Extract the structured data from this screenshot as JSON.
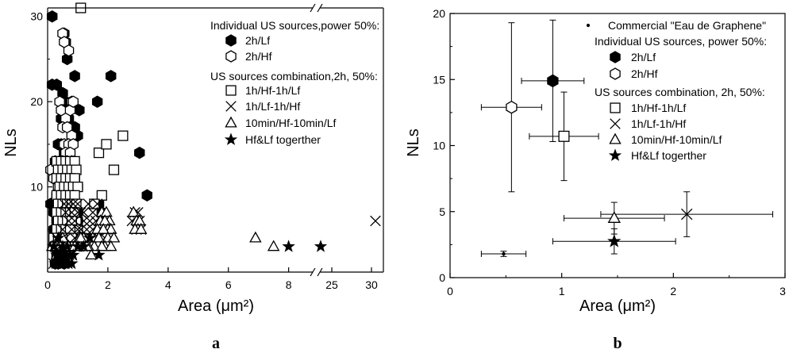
{
  "panels": {
    "a": "a",
    "b": "b"
  },
  "chart_data": [
    {
      "type": "scatter",
      "panel": "a",
      "xlabel": "Area (μm²)",
      "ylabel": "NLs",
      "xlim_left": [
        0,
        8.8
      ],
      "xlim_right": [
        23.5,
        31.5
      ],
      "axis_break_x": {
        "from": 8.8,
        "to": 23.5
      },
      "ylim": [
        0,
        31
      ],
      "x_ticks": [
        {
          "v": 0,
          "label": "0"
        },
        {
          "v": 2,
          "label": "2"
        },
        {
          "v": 4,
          "label": "4"
        },
        {
          "v": 6,
          "label": "6"
        },
        {
          "v": 8,
          "label": "8"
        },
        {
          "v": 25,
          "label": "25"
        },
        {
          "v": 30,
          "label": "30"
        }
      ],
      "y_ticks": [
        {
          "v": 10,
          "label": "10"
        },
        {
          "v": 20,
          "label": "20"
        },
        {
          "v": 30,
          "label": "30"
        }
      ],
      "legend_heading_1": "Individual US sources,power 50%:",
      "legend_heading_2": "US sources combination,2h, 50%:",
      "series": [
        {
          "name": "2h/Lf",
          "marker": "hexagon",
          "fill": "#000000",
          "x": [
            0.15,
            0.55,
            0.6,
            0.65,
            0.9,
            1.05,
            2.1,
            0.15,
            0.3,
            0.5,
            0.45,
            0.6,
            0.7,
            0.9,
            1.0,
            0.35,
            0.45,
            0.55,
            0.6,
            0.7,
            0.25,
            0.4,
            0.5,
            0.6,
            0.8,
            0.9,
            0.5,
            0.6,
            0.7,
            0.8,
            0.9,
            1.0,
            0.3,
            0.4,
            0.5,
            0.6,
            0.7,
            1.7,
            0.1,
            0.2,
            0.3,
            0.5,
            0.6,
            0.8,
            0.9,
            1.8,
            0.2,
            0.4,
            0.5,
            0.7,
            0.9,
            1.0,
            0.3,
            0.4,
            0.6,
            0.8,
            1.0,
            0.2,
            0.4,
            0.5,
            0.7,
            0.3,
            0.5,
            0.8,
            0.2,
            0.4,
            0.6,
            0.3,
            0.5,
            0.25,
            0.35,
            0.55,
            1.65,
            3.05,
            3.3
          ],
          "y": [
            30,
            28,
            27,
            25,
            23,
            19,
            23,
            22,
            22,
            21,
            18,
            20,
            18,
            17,
            16,
            15,
            15,
            14,
            14,
            13,
            13,
            13,
            12,
            12,
            12,
            11,
            11,
            11,
            10,
            10,
            10,
            10,
            9,
            9,
            9,
            9,
            8,
            8,
            8,
            8,
            8,
            8,
            8,
            8,
            8,
            7,
            7,
            7,
            7,
            7,
            7,
            7,
            6,
            6,
            6,
            6,
            6,
            5,
            5,
            5,
            5,
            4,
            4,
            4,
            3,
            3,
            3,
            2,
            2,
            1,
            1,
            1,
            20,
            14,
            9
          ]
        },
        {
          "name": "2h/Hf",
          "marker": "hexagon",
          "fill": "#ffffff",
          "x": [
            0.5,
            0.55,
            0.7,
            0.4,
            0.5,
            0.8,
            0.45,
            0.6,
            0.75,
            0.85,
            0.5,
            0.65,
            0.8,
            0.55,
            0.7,
            0.85,
            0.6,
            0.75,
            0.5,
            0.65,
            0.8,
            0.55,
            0.7,
            0.85,
            0.6,
            0.75,
            0.9,
            0.5,
            0.65,
            0.8,
            0.95,
            0.55,
            0.7,
            0.85,
            0.6,
            0.75,
            0.9,
            0.5,
            0.7,
            0.85,
            0.6,
            0.8,
            0.95,
            0.7,
            0.9,
            1.0,
            0.8,
            1.1,
            1.2,
            0.1,
            0.2,
            0.35,
            0.6,
            0.9
          ],
          "y": [
            28,
            27,
            26,
            20,
            19,
            20,
            19,
            18,
            19,
            20,
            17,
            17,
            16,
            15,
            15,
            15,
            14,
            14,
            13,
            13,
            13,
            12,
            12,
            12,
            11,
            11,
            11,
            10,
            10,
            10,
            10,
            9,
            9,
            9,
            8,
            8,
            8,
            7,
            7,
            7,
            6,
            6,
            6,
            5,
            5,
            5,
            4,
            4,
            4,
            12,
            11,
            10,
            9,
            8
          ]
        },
        {
          "name": "1h/Hf-1h/Lf",
          "marker": "square",
          "fill": "#ffffff",
          "x": [
            1.1,
            2.5,
            1.7,
            1.95,
            2.2,
            1.8,
            1.55,
            0.3,
            0.45,
            0.6,
            0.75,
            0.9,
            0.35,
            0.5,
            0.65,
            0.8,
            0.95,
            0.3,
            0.45,
            0.6,
            0.75,
            0.9,
            0.4,
            0.55,
            0.7,
            0.85,
            1.0,
            0.3,
            0.45,
            0.6,
            0.75,
            0.9,
            0.35,
            0.5,
            0.65,
            0.8,
            0.95,
            0.3,
            0.45,
            0.6,
            0.75,
            0.9,
            0.35,
            0.5,
            0.65,
            0.8,
            0.3,
            0.45,
            0.6,
            0.75,
            0.2,
            0.35,
            0.5,
            0.65,
            0.8,
            0.25,
            0.4,
            0.55,
            0.7
          ],
          "y": [
            31,
            16,
            14,
            15,
            12,
            9,
            8,
            13,
            13,
            13,
            13,
            13,
            12,
            12,
            12,
            12,
            12,
            11,
            11,
            11,
            11,
            11,
            10,
            10,
            10,
            10,
            10,
            9,
            9,
            9,
            9,
            9,
            8,
            8,
            8,
            8,
            8,
            7,
            7,
            7,
            7,
            7,
            6,
            6,
            6,
            6,
            5,
            5,
            5,
            5,
            4,
            4,
            4,
            4,
            4,
            3,
            3,
            3,
            3
          ]
        },
        {
          "name": "1h/Lf-1h/Hf",
          "marker": "x",
          "fill": "#000000",
          "x": [
            2.9,
            3.0,
            3.05,
            2.8,
            2.95,
            3.1,
            0.55,
            0.7,
            0.85,
            1.0,
            1.1,
            1.2,
            1.35,
            1.5,
            1.65,
            0.6,
            0.8,
            1.0,
            1.2,
            1.4,
            1.6,
            1.8,
            1.95,
            0.7,
            0.9,
            1.1,
            1.3,
            1.5,
            1.7,
            1.9,
            0.5,
            0.8,
            1.0,
            1.2,
            1.45,
            1.7,
            0.6,
            0.9,
            1.1,
            1.3,
            0.3,
            0.5,
            0.7,
            0.9,
            1.05,
            0.25,
            0.4,
            0.6,
            0.8,
            0.3,
            0.5,
            0.2,
            0.4,
            30.5
          ],
          "y": [
            7,
            7,
            6,
            6,
            5,
            5,
            8,
            8,
            8,
            8,
            7,
            7,
            8,
            7,
            8,
            7,
            7,
            7,
            6,
            6,
            6,
            6,
            5,
            6,
            6,
            5,
            5,
            5,
            5,
            4,
            5,
            5,
            5,
            4,
            4,
            4,
            4,
            4,
            4,
            3,
            4,
            4,
            3,
            3,
            3,
            3,
            3,
            3,
            2,
            2,
            2,
            1,
            1,
            6
          ]
        },
        {
          "name": "10min/Hf-10min/Lf",
          "marker": "triangle",
          "fill": "#ffffff",
          "x": [
            2.85,
            2.95,
            3.05,
            3.0,
            2.9,
            3.1,
            1.8,
            1.95,
            2.05,
            1.75,
            1.9,
            2.0,
            2.1,
            1.65,
            1.85,
            2.0,
            2.2,
            1.5,
            1.7,
            1.9,
            2.1,
            1.3,
            1.55,
            1.8,
            1.2,
            1.45,
            1.05,
            1.35,
            0.8,
            1.1,
            1.3,
            0.5,
            0.7,
            0.9,
            0.4,
            0.6,
            0.15,
            0.3,
            0.5,
            6.9,
            7.5
          ],
          "y": [
            7,
            6,
            6,
            5,
            5,
            5,
            7,
            7,
            6,
            6,
            6,
            5,
            5,
            5,
            5,
            4,
            4,
            4,
            4,
            3,
            3,
            3,
            3,
            3,
            4,
            2,
            4,
            3,
            3,
            4,
            3,
            4,
            3,
            3,
            2,
            2,
            3,
            2,
            2,
            4,
            3
          ]
        },
        {
          "name": "Hf&Lf togerther",
          "marker": "star",
          "fill": "#000000",
          "x": [
            0.2,
            0.3,
            0.4,
            0.5,
            0.6,
            0.3,
            0.45,
            0.55,
            0.7,
            0.85,
            1.0,
            1.2,
            1.4,
            1.7,
            0.25,
            0.4,
            0.6,
            0.8,
            0.35,
            0.5,
            0.65,
            0.75,
            8.0,
            23.6
          ],
          "y": [
            3,
            2,
            2,
            2,
            2,
            1,
            1,
            1,
            1,
            2,
            3,
            3,
            4,
            2,
            1,
            1,
            1,
            1,
            4,
            3,
            3,
            2,
            3,
            3
          ]
        }
      ]
    },
    {
      "type": "scatter",
      "panel": "b",
      "xlabel": "Area (μm²)",
      "ylabel": "NLs",
      "xlim": [
        0,
        3
      ],
      "ylim": [
        0,
        20
      ],
      "x_ticks": [
        {
          "v": 0,
          "label": "0"
        },
        {
          "v": 1,
          "label": "1"
        },
        {
          "v": 2,
          "label": "2"
        },
        {
          "v": 3,
          "label": "3"
        }
      ],
      "y_ticks": [
        {
          "v": 0,
          "label": "0"
        },
        {
          "v": 5,
          "label": "5"
        },
        {
          "v": 10,
          "label": "10"
        },
        {
          "v": 15,
          "label": "15"
        },
        {
          "v": 20,
          "label": "20"
        }
      ],
      "legend_heading_1": "Individual US sources, power 50%:",
      "legend_heading_2": "US sources combination, 2h, 50%:",
      "series": [
        {
          "name": "Commercial \"Eau de Graphene\"",
          "marker": "dot",
          "fill": "#000000",
          "x": 0.48,
          "y": 1.8,
          "xerr": 0.2,
          "yerr": 0.2
        },
        {
          "name": "2h/Lf",
          "marker": "hexagon",
          "fill": "#000000",
          "x": 0.92,
          "y": 14.9,
          "xerr": 0.28,
          "yerr": 4.6
        },
        {
          "name": "2h/Hf",
          "marker": "hexagon",
          "fill": "#ffffff",
          "x": 0.55,
          "y": 12.9,
          "xerr": 0.27,
          "yerr": 6.4
        },
        {
          "name": "1h/Hf-1h/Lf",
          "marker": "square",
          "fill": "#ffffff",
          "x": 1.02,
          "y": 10.7,
          "xerr": 0.31,
          "yerr": 3.35
        },
        {
          "name": "1h/Lf-1h/Hf",
          "marker": "x",
          "fill": "#000000",
          "x": 2.12,
          "y": 4.8,
          "xerr": 0.77,
          "yerr": 1.7
        },
        {
          "name": "10min/Hf-10min/Lf",
          "marker": "triangle",
          "fill": "#ffffff",
          "x": 1.47,
          "y": 4.5,
          "xerr": 0.45,
          "yerr": 1.2
        },
        {
          "name": "Hf&Lf togerther",
          "marker": "star",
          "fill": "#000000",
          "x": 1.47,
          "y": 2.75,
          "xerr": 0.55,
          "yerr": 0.95
        }
      ]
    }
  ]
}
